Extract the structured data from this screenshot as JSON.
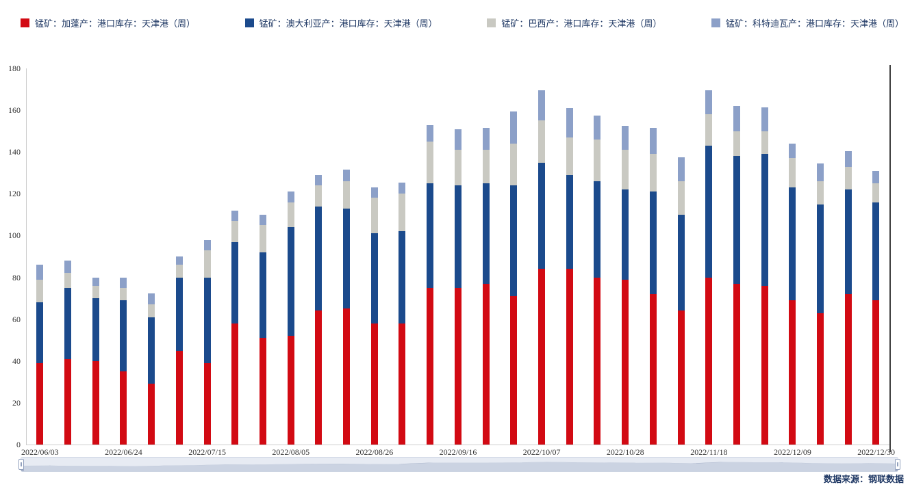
{
  "chart_data": {
    "type": "bar",
    "stacked": true,
    "title": "",
    "xlabel": "",
    "ylabel": "",
    "ylim": [
      0,
      180
    ],
    "ytick_step": 20,
    "grid": false,
    "legend_position": "top",
    "categories": [
      "2022/06/03",
      "2022/06/10",
      "2022/06/17",
      "2022/06/24",
      "2022/07/01",
      "2022/07/08",
      "2022/07/15",
      "2022/07/22",
      "2022/07/29",
      "2022/08/05",
      "2022/08/12",
      "2022/08/19",
      "2022/08/26",
      "2022/09/02",
      "2022/09/09",
      "2022/09/16",
      "2022/09/23",
      "2022/09/30",
      "2022/10/07",
      "2022/10/14",
      "2022/10/21",
      "2022/10/28",
      "2022/11/04",
      "2022/11/11",
      "2022/11/18",
      "2022/11/25",
      "2022/12/02",
      "2022/12/09",
      "2022/12/16",
      "2022/12/23",
      "2022/12/30"
    ],
    "xtick_labels": [
      "2022/06/03",
      "2022/06/24",
      "2022/07/15",
      "2022/08/05",
      "2022/08/26",
      "2022/09/16",
      "2022/10/07",
      "2022/10/28",
      "2022/11/18",
      "2022/12/09",
      "2022/12/30"
    ],
    "series": [
      {
        "name": "锰矿：加蓬产：港口库存：天津港（周）",
        "color": "#d20a13",
        "values": [
          39,
          41,
          40,
          35,
          29,
          45,
          39,
          58,
          51,
          52,
          64,
          65,
          58,
          58,
          75,
          75,
          77,
          71,
          84,
          84,
          80,
          79,
          72,
          64,
          80,
          77,
          76,
          69,
          63,
          72,
          69
        ]
      },
      {
        "name": "锰矿：澳大利亚产：港口库存：天津港（周）",
        "color": "#1b4a8c",
        "values": [
          29,
          34,
          30,
          34,
          32,
          35,
          41,
          39,
          41,
          52,
          50,
          48,
          43,
          44,
          50,
          49,
          48,
          53,
          51,
          45,
          46,
          43,
          49,
          46,
          63,
          61,
          63,
          54,
          52,
          50,
          47
        ]
      },
      {
        "name": "锰矿：巴西产：港口库存：天津港（周）",
        "color": "#c9c9c2",
        "values": [
          11,
          7,
          6,
          6,
          6,
          6,
          13,
          10,
          13,
          12,
          10,
          13,
          17,
          18,
          20,
          17,
          16,
          20,
          20,
          18,
          20,
          19,
          18,
          16,
          15,
          12,
          11,
          14,
          11,
          11,
          9
        ]
      },
      {
        "name": "锰矿：科特迪瓦产：港口库存：天津港（周）",
        "color": "#8ca0c8",
        "values": [
          7,
          6,
          4,
          5,
          5.5,
          4,
          5,
          5,
          5,
          5,
          5,
          5.5,
          5,
          5.5,
          8,
          10,
          10.5,
          15.5,
          14.5,
          14,
          11.5,
          11.5,
          12.5,
          11.5,
          11.5,
          12,
          11.5,
          7,
          8.5,
          7.5,
          6
        ]
      }
    ]
  },
  "footer": {
    "source": "数据来源：钢联数据"
  }
}
